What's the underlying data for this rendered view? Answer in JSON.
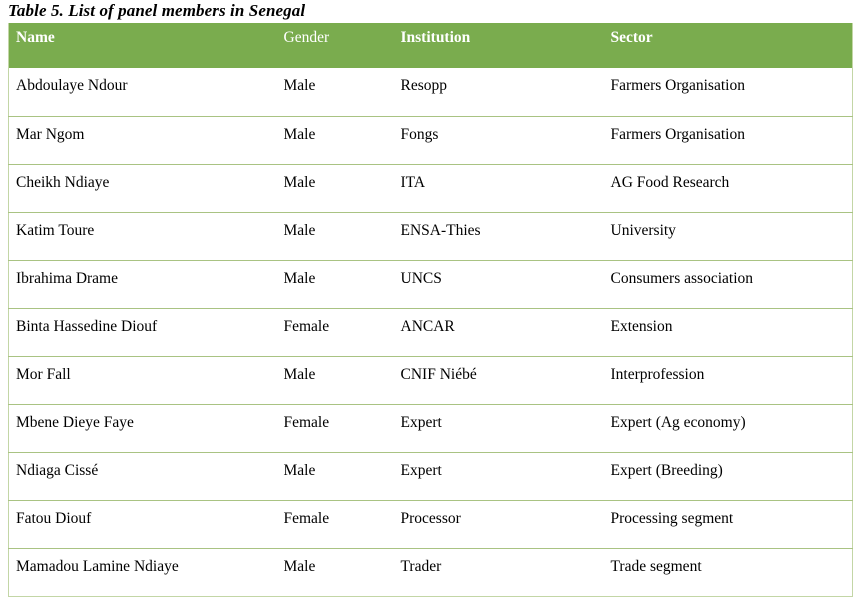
{
  "title": "Table 5. List of panel members in Senegal",
  "table": {
    "columns": [
      {
        "label": "Name",
        "bold": true
      },
      {
        "label": "Gender",
        "bold": false
      },
      {
        "label": "Institution",
        "bold": true
      },
      {
        "label": "Sector",
        "bold": true
      }
    ],
    "rows": [
      [
        "Abdoulaye Ndour",
        "Male",
        "Resopp",
        "Farmers Organisation"
      ],
      [
        "Mar Ngom",
        "Male",
        "Fongs",
        "Farmers Organisation"
      ],
      [
        "Cheikh Ndiaye",
        "Male",
        "ITA",
        "AG Food Research"
      ],
      [
        "Katim Toure",
        "Male",
        "ENSA-Thies",
        "University"
      ],
      [
        "Ibrahima Drame",
        "Male",
        "UNCS",
        "Consumers association"
      ],
      [
        "Binta Hassedine Diouf",
        "Female",
        "ANCAR",
        "Extension"
      ],
      [
        "Mor Fall",
        "Male",
        "CNIF Niébé",
        "Interprofession"
      ],
      [
        "Mbene Dieye Faye",
        "Female",
        "Expert",
        "Expert (Ag economy)"
      ],
      [
        "Ndiaga Cissé",
        "Male",
        "Expert",
        "Expert (Breeding)"
      ],
      [
        "Fatou Diouf",
        "Female",
        "Processor",
        "Processing segment"
      ],
      [
        "Mamadou Lamine Ndiaye",
        "Male",
        "Trader",
        "Trade segment"
      ]
    ]
  },
  "colors": {
    "header_bg": "#7aac4e",
    "header_text": "#ffffff",
    "row_border": "#a9c383",
    "outer_border": "#c3d6a6",
    "body_text": "#000000"
  }
}
